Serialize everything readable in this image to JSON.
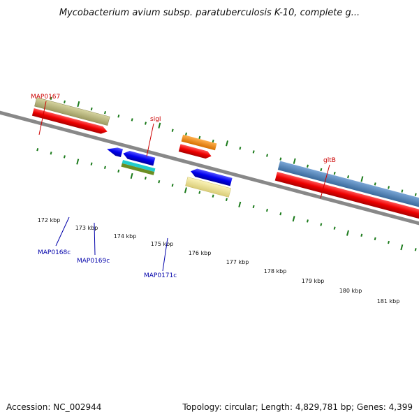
{
  "title": "Mycobacterium avium subsp. paratuberculosis K-10, complete g...",
  "footer": {
    "accession": "Accession: NC_002944",
    "summary": "Topology: circular; Length: 4,829,781 bp; Genes: 4,399"
  },
  "colors": {
    "gene_red": "#ee0000",
    "backbone": "#888888",
    "tick_green": "#1a7a1a",
    "label_red": "#cc0000",
    "label_blue": "#0000aa",
    "olive": "#b8b67c",
    "orange": "#ff8c00",
    "blue": "#0000ee",
    "steel_blue": "#4f82b8",
    "cyan": "#20cccc",
    "green_olive": "#6b8e23",
    "pale_yellow": "#f0e68c"
  },
  "gene_labels": {
    "top": [
      "MAP0167",
      "sigI",
      "gltB"
    ],
    "bottom": [
      "MAP0168c",
      "MAP0169c",
      "MAP0171c"
    ]
  },
  "ruler_labels": [
    "172 kbp",
    "173 kbp",
    "174 kbp",
    "175 kbp",
    "176 kbp",
    "177 kbp",
    "178 kbp",
    "179 kbp",
    "180 kbp",
    "181 kbp"
  ]
}
